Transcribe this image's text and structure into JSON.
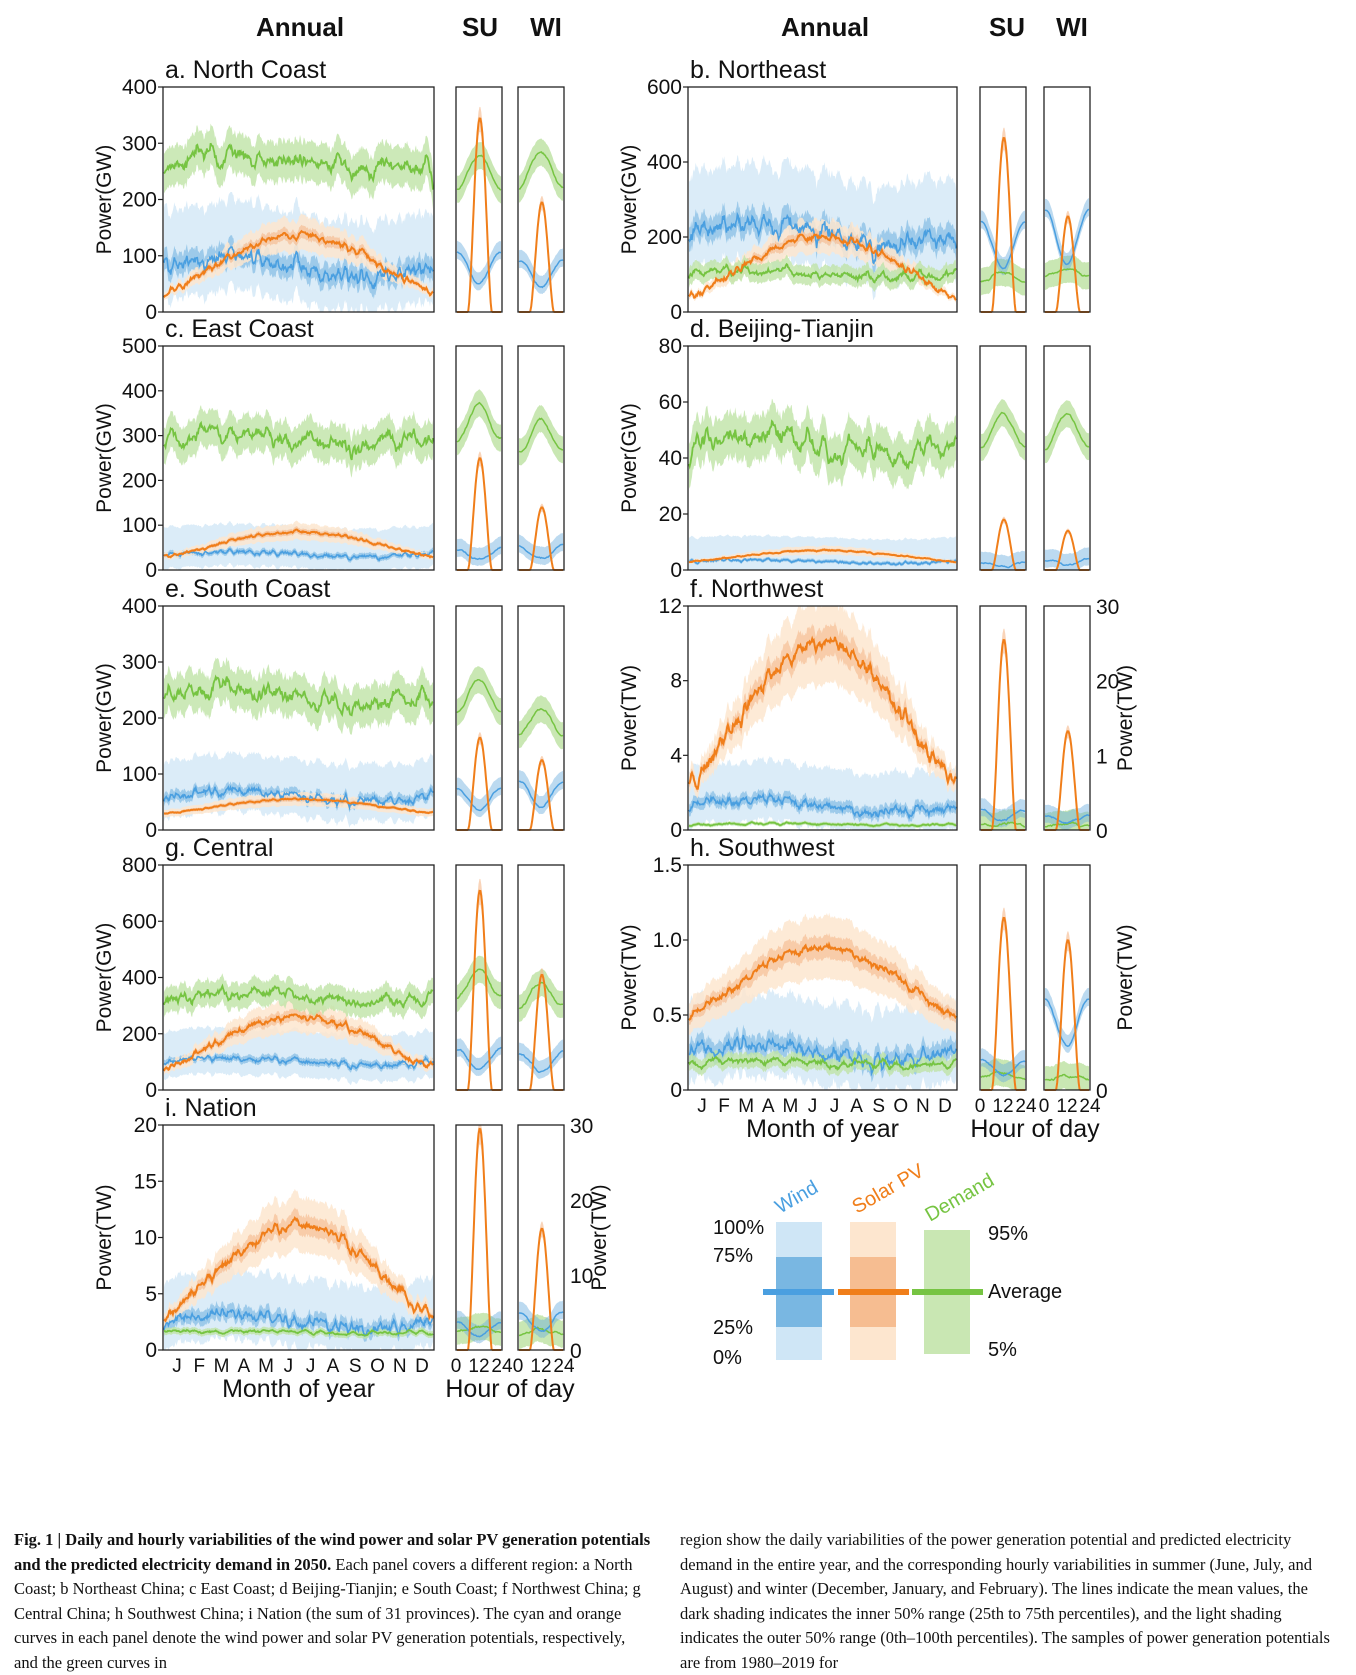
{
  "header": {
    "annual": "Annual",
    "su": "SU",
    "wi": "WI"
  },
  "colors": {
    "wind": "#4a9fe0",
    "wind_dark": "#6aaede",
    "wind_light": "#cfe6f6",
    "solar": "#f07e1a",
    "solar_dark": "#f5b88a",
    "solar_light": "#fde6cf",
    "demand": "#76c442",
    "demand_band": "#bfe3a6"
  },
  "axes_text": {
    "month_of_year": "Month of year",
    "hour_of_day": "Hour of day",
    "months": [
      "J",
      "F",
      "M",
      "A",
      "M",
      "J",
      "J",
      "A",
      "S",
      "O",
      "N",
      "D"
    ],
    "hour_ticks_su": [
      "0",
      "12",
      "24"
    ],
    "hour_ticks_wi": [
      "0",
      "12",
      "24"
    ]
  },
  "chart_data": [
    {
      "id": "a",
      "type": "line",
      "title": "a. North Coast",
      "ylabel": "Power(GW)",
      "ylim": [
        0,
        400
      ],
      "yticks": [
        "0",
        "100",
        "200",
        "300",
        "400"
      ],
      "annual": {
        "demand_mean": 265,
        "demand_band": 35,
        "solar_peak": 135,
        "solar_base": 35,
        "wind_mean": 80,
        "wind_amp": 30
      },
      "su": {
        "demand": 250,
        "solar_peak": 345,
        "wind": 80
      },
      "wi": {
        "demand": 255,
        "solar_peak": 195,
        "wind": 70
      }
    },
    {
      "id": "b",
      "type": "line",
      "title": "b. Northeast",
      "ylabel": "Power(GW)",
      "ylim": [
        0,
        600
      ],
      "yticks": [
        "0",
        "200",
        "400",
        "600"
      ],
      "annual": {
        "demand_mean": 100,
        "demand_band": 25,
        "solar_peak": 200,
        "solar_base": 40,
        "wind_mean": 210,
        "wind_amp": 50
      },
      "su": {
        "demand": 95,
        "solar_peak": 465,
        "wind": 180
      },
      "wi": {
        "demand": 105,
        "solar_peak": 255,
        "wind": 200
      }
    },
    {
      "id": "c",
      "type": "line",
      "title": "c. East Coast",
      "ylabel": "Power(GW)",
      "ylim": [
        0,
        500
      ],
      "yticks": [
        "0",
        "100",
        "200",
        "300",
        "400",
        "500"
      ],
      "annual": {
        "demand_mean": 290,
        "demand_band": 40,
        "solar_peak": 85,
        "solar_base": 30,
        "wind_mean": 35,
        "wind_amp": 10
      },
      "su": {
        "demand": 330,
        "solar_peak": 250,
        "wind": 35
      },
      "wi": {
        "demand": 300,
        "solar_peak": 140,
        "wind": 40
      }
    },
    {
      "id": "d",
      "type": "line",
      "title": "d. Beijing-Tianjin",
      "ylabel": "Power(GW)",
      "ylim": [
        0,
        80
      ],
      "yticks": [
        "0",
        "20",
        "40",
        "60",
        "80"
      ],
      "annual": {
        "demand_mean": 45,
        "demand_band": 8,
        "solar_peak": 7,
        "solar_base": 3,
        "wind_mean": 3,
        "wind_amp": 1
      },
      "su": {
        "demand": 50,
        "solar_peak": 18,
        "wind": 2
      },
      "wi": {
        "demand": 50,
        "solar_peak": 14,
        "wind": 3
      }
    },
    {
      "id": "e",
      "type": "line",
      "title": "e. South Coast",
      "ylabel": "Power(GW)",
      "ylim": [
        0,
        400
      ],
      "yticks": [
        "0",
        "100",
        "200",
        "300",
        "400"
      ],
      "annual": {
        "demand_mean": 240,
        "demand_band": 35,
        "solar_peak": 55,
        "solar_base": 30,
        "wind_mean": 60,
        "wind_amp": 15
      },
      "su": {
        "demand": 240,
        "solar_peak": 165,
        "wind": 55
      },
      "wi": {
        "demand": 195,
        "solar_peak": 125,
        "wind": 65
      }
    },
    {
      "id": "f",
      "type": "line",
      "title": "f. Northwest",
      "ylabel": "Power(TW)",
      "ylabel_right": "Power(TW)",
      "ylim": [
        0,
        12
      ],
      "yticks": [
        "0",
        "4",
        "8",
        "12"
      ],
      "yticks_right": [
        "0",
        "1",
        "20",
        "30"
      ],
      "annual": {
        "demand_mean": 0.3,
        "demand_band": 0.1,
        "solar_peak": 10,
        "solar_base": 2.5,
        "wind_mean": 1.3,
        "wind_amp": 0.5
      },
      "su": {
        "demand": 0.3,
        "solar_peak": 10.2,
        "wind": 0.8
      },
      "wi": {
        "demand": 0.3,
        "solar_peak": 5.3,
        "wind": 0.6
      }
    },
    {
      "id": "g",
      "type": "line",
      "title": "g. Central",
      "ylabel": "Power(GW)",
      "ylim": [
        0,
        800
      ],
      "yticks": [
        "0",
        "200",
        "400",
        "600",
        "800"
      ],
      "annual": {
        "demand_mean": 330,
        "demand_band": 45,
        "solar_peak": 260,
        "solar_base": 80,
        "wind_mean": 100,
        "wind_amp": 20
      },
      "su": {
        "demand": 380,
        "solar_peak": 710,
        "wind": 110
      },
      "wi": {
        "demand": 340,
        "solar_peak": 410,
        "wind": 100
      }
    },
    {
      "id": "h",
      "type": "line",
      "title": "h. Southwest",
      "ylabel": "Power(TW)",
      "ylabel_right": "Power(TW)",
      "ylim": [
        0,
        1.5
      ],
      "yticks": [
        "0",
        "0.5",
        "1.0",
        "1.5"
      ],
      "yticks_right": [
        "0"
      ],
      "annual": {
        "demand_mean": 0.18,
        "demand_band": 0.05,
        "solar_peak": 0.95,
        "solar_base": 0.5,
        "wind_mean": 0.25,
        "wind_amp": 0.1
      },
      "su": {
        "demand": 0.1,
        "solar_peak": 1.15,
        "wind": 0.15
      },
      "wi": {
        "demand": 0.08,
        "solar_peak": 1.0,
        "wind": 0.45
      }
    },
    {
      "id": "i",
      "type": "line",
      "title": "i. Nation",
      "ylabel": "Power(TW)",
      "ylabel_right": "Power(TW)",
      "ylim": [
        0,
        20
      ],
      "yticks": [
        "0",
        "5",
        "10",
        "15",
        "20"
      ],
      "yticks_right": [
        "0",
        "10",
        "20",
        "30"
      ],
      "annual": {
        "demand_mean": 1.6,
        "demand_band": 0.3,
        "solar_peak": 11,
        "solar_base": 3,
        "wind_mean": 2.5,
        "wind_amp": 1
      },
      "su": {
        "demand": 1.8,
        "solar_peak": 19.7,
        "wind": 1.8
      },
      "wi": {
        "demand": 1.6,
        "solar_peak": 10.8,
        "wind": 2.5
      }
    }
  ],
  "legend": {
    "wind": "Wind",
    "solar": "Solar PV",
    "demand": "Demand",
    "p100": "100%",
    "p75": "75%",
    "p25": "25%",
    "p0": "0%",
    "p95": "95%",
    "average": "Average",
    "p5": "5%"
  },
  "caption": {
    "bold": "Fig. 1 | Daily and hourly variabilities of the wind power and solar PV generation potentials and the predicted electricity demand in 2050.",
    "left_rest": " Each panel covers a different region: a North Coast; b Northeast China; c East Coast; d Beijing-Tianjin; e South Coast; f Northwest China; g Central China; h Southwest China; i Nation (the sum of 31 provinces). The cyan and orange curves in each panel denote the wind power and solar PV generation potentials, respectively, and the green curves in",
    "right": "region show the daily variabilities of the power generation potential and predicted electricity demand in the entire year, and the corresponding hourly variabilities in summer (June, July, and August) and winter (December, January, and February). The lines indicate the mean values, the dark shading indicates the inner 50% range (25th to 75th percentiles), and the light shading indicates the outer 50% range (0th–100th percentiles). The samples of power generation potentials are from 1980–2019 for"
  }
}
